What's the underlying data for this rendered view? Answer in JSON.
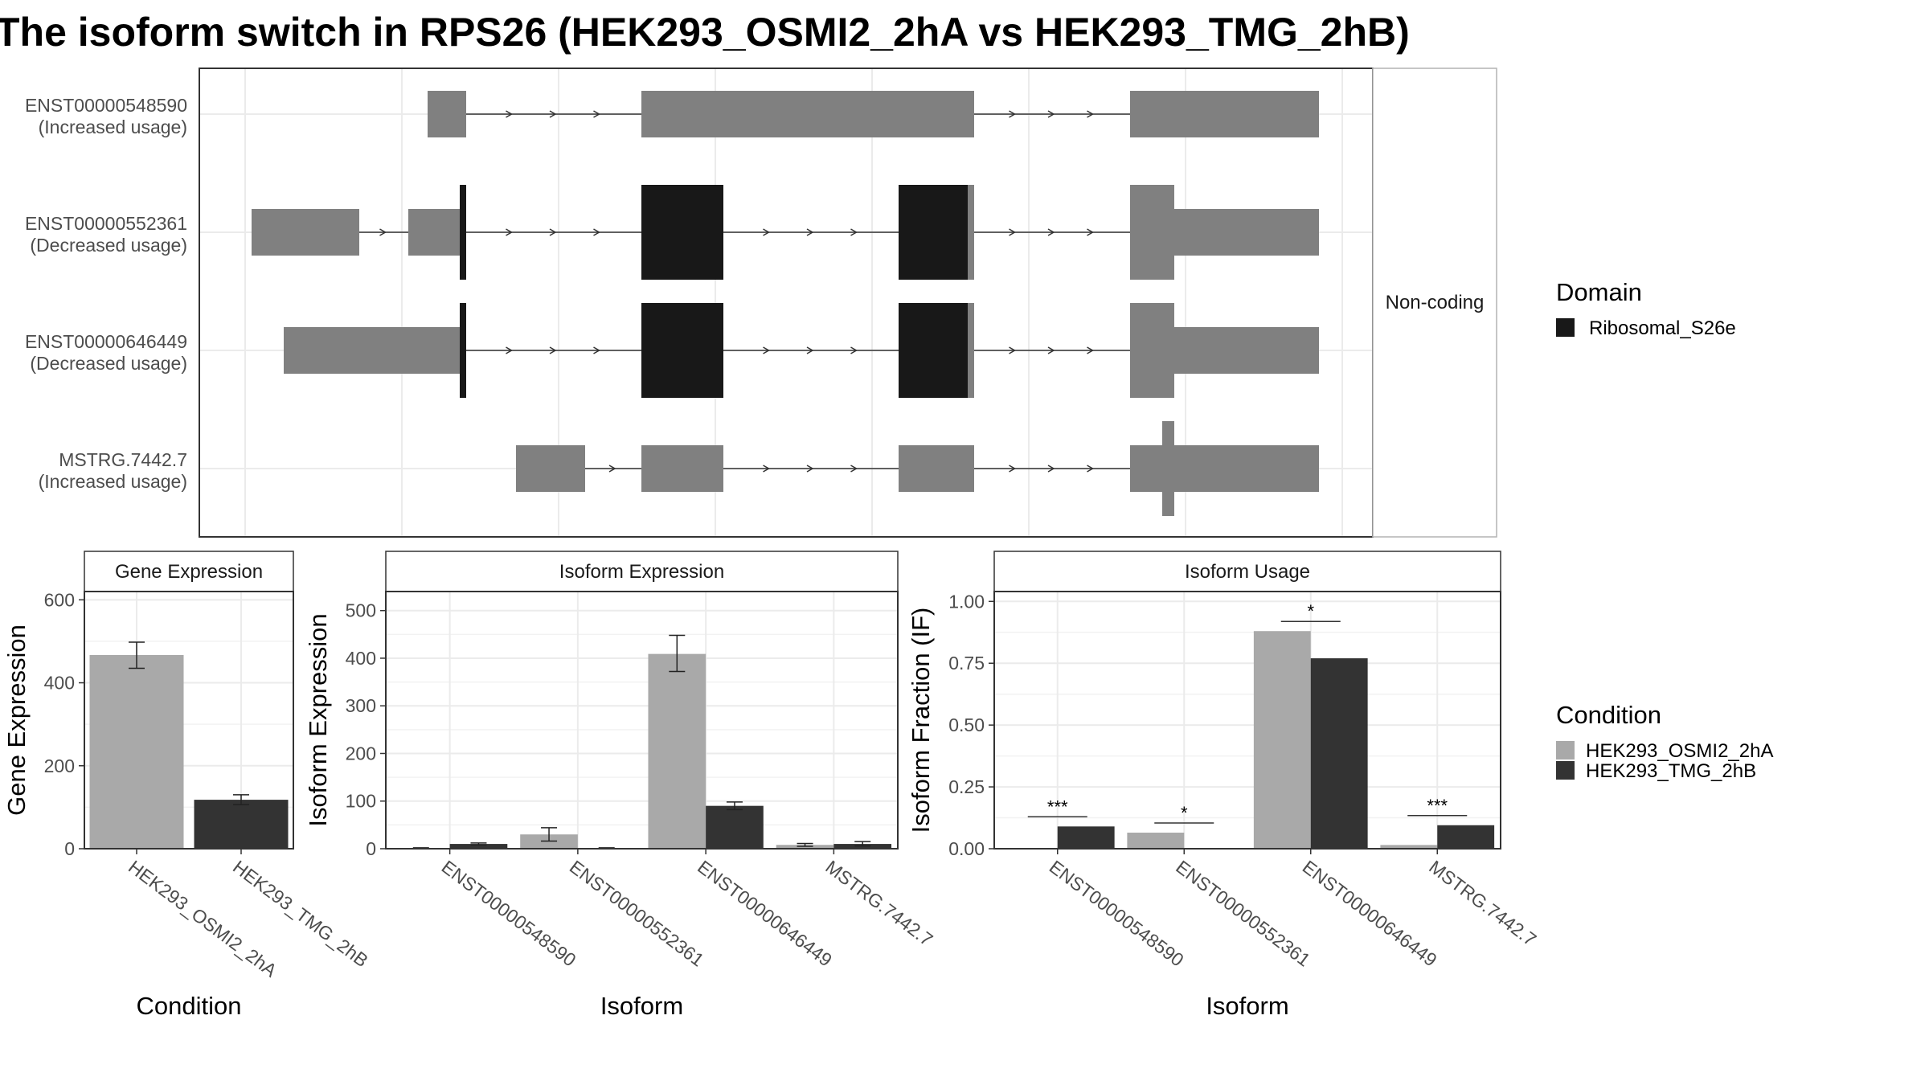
{
  "title": "The isoform switch in RPS26 (HEK293_OSMI2_2hA vs HEK293_TMG_2hB)",
  "colors": {
    "light": "#a9a9a9",
    "dark": "#333333",
    "exon": "#808080",
    "domain": "#181818"
  },
  "structure": {
    "strip_label": "Non-coding",
    "transcripts": [
      {
        "id": "ENST00000548590",
        "usage": "(Increased usage)"
      },
      {
        "id": "ENST00000552361",
        "usage": "(Decreased usage)"
      },
      {
        "id": "ENST00000646449",
        "usage": "(Decreased usage)"
      },
      {
        "id": "MSTRG.7442.7",
        "usage": "(Increased usage)"
      }
    ]
  },
  "domain_legend": {
    "title": "Domain",
    "items": [
      "Ribosomal_S26e"
    ]
  },
  "condition_legend": {
    "title": "Condition",
    "items": [
      "HEK293_OSMI2_2hA",
      "HEK293_TMG_2hB"
    ]
  },
  "chart_data": [
    {
      "type": "bar",
      "title": "Gene Expression",
      "xlabel": "Condition",
      "ylabel": "Gene Expression",
      "ylim": [
        0,
        620
      ],
      "yticks": [
        "0",
        "200",
        "400",
        "600"
      ],
      "categories": [
        "HEK293_OSMI2_2hA",
        "HEK293_TMG_2hB"
      ],
      "values": [
        467,
        118
      ],
      "errors": [
        [
          435,
          498
        ],
        [
          106,
          130
        ]
      ]
    },
    {
      "type": "bar",
      "title": "Isoform Expression",
      "xlabel": "Isoform",
      "ylabel": "Isoform Expression",
      "ylim": [
        0,
        540
      ],
      "yticks": [
        "0",
        "100",
        "200",
        "300",
        "400",
        "500"
      ],
      "categories": [
        "ENST00000548590",
        "ENST00000552361",
        "ENST00000646449",
        "MSTRG.7442.7"
      ],
      "series": [
        {
          "name": "HEK293_OSMI2_2hA",
          "values": [
            1,
            30,
            409,
            8
          ],
          "errors": [
            [
              0,
              2
            ],
            [
              16,
              44
            ],
            [
              372,
              448
            ],
            [
              5,
              11
            ]
          ]
        },
        {
          "name": "HEK293_TMG_2hB",
          "values": [
            10,
            1,
            90,
            10
          ],
          "errors": [
            [
              8,
              12
            ],
            [
              0,
              2
            ],
            [
              82,
              98
            ],
            [
              6,
              15
            ]
          ]
        }
      ]
    },
    {
      "type": "bar",
      "title": "Isoform Usage",
      "xlabel": "Isoform",
      "ylabel": "Isoform Fraction (IF)",
      "ylim": [
        0,
        1.04
      ],
      "yticks": [
        "0.00",
        "0.25",
        "0.50",
        "0.75",
        "1.00"
      ],
      "categories": [
        "ENST00000548590",
        "ENST00000552361",
        "ENST00000646449",
        "MSTRG.7442.7"
      ],
      "series": [
        {
          "name": "HEK293_OSMI2_2hA",
          "values": [
            0.002,
            0.065,
            0.88,
            0.015
          ]
        },
        {
          "name": "HEK293_TMG_2hB",
          "values": [
            0.09,
            0.002,
            0.77,
            0.095
          ]
        }
      ],
      "significance": [
        "***",
        "*",
        "*",
        "***"
      ]
    }
  ]
}
